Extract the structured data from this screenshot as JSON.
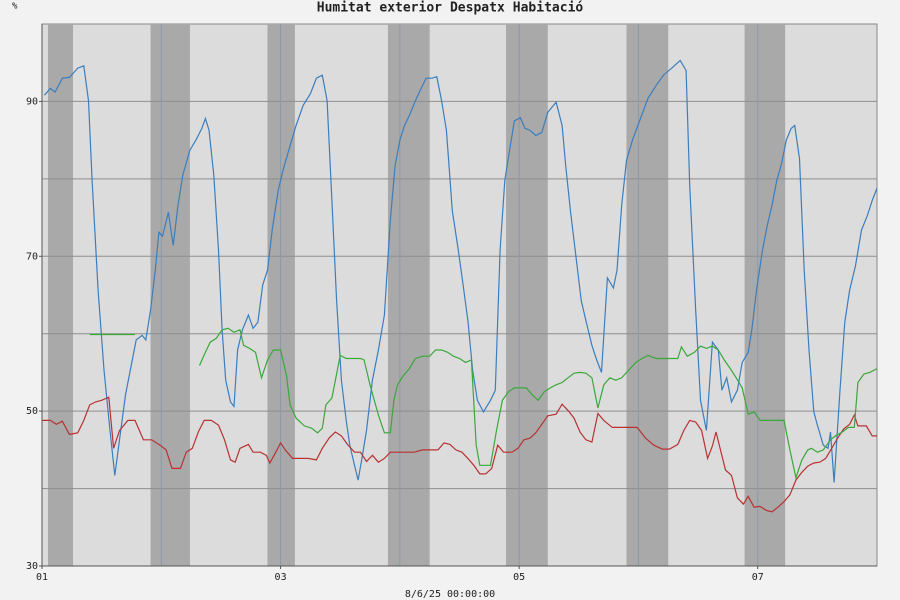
{
  "chart_data": {
    "type": "line",
    "unit_label": "%",
    "xlabel": "8/6/25 00:00:00",
    "xlim": [
      1,
      8
    ],
    "xticks": [
      {
        "value": 1,
        "label": "01"
      },
      {
        "value": 3,
        "label": "03"
      },
      {
        "value": 5,
        "label": "05"
      },
      {
        "value": 7,
        "label": "07"
      }
    ],
    "xgrid": [
      2,
      3,
      4,
      5,
      6,
      7
    ],
    "ylim": [
      30,
      100
    ],
    "yticks": [
      30,
      50,
      70,
      90
    ],
    "ygrid": [
      40,
      50,
      60,
      70,
      80,
      90
    ],
    "bands": [
      [
        1.05,
        1.26
      ],
      [
        1.91,
        2.24
      ],
      [
        2.89,
        3.12
      ],
      [
        3.9,
        4.25
      ],
      [
        4.89,
        5.24
      ],
      [
        5.9,
        6.25
      ],
      [
        6.89,
        7.23
      ]
    ],
    "legend": "top",
    "series": [
      {
        "name": "Humitat exterior",
        "color": "#3a7ebf",
        "x": [
          1.02,
          1.07,
          1.11,
          1.17,
          1.23,
          1.3,
          1.35,
          1.39,
          1.42,
          1.47,
          1.52,
          1.57,
          1.61,
          1.65,
          1.7,
          1.74,
          1.79,
          1.84,
          1.87,
          1.91,
          1.95,
          1.98,
          2.01,
          2.06,
          2.1,
          2.14,
          2.18,
          2.24,
          2.29,
          2.34,
          2.37,
          2.4,
          2.44,
          2.48,
          2.51,
          2.54,
          2.58,
          2.61,
          2.64,
          2.68,
          2.73,
          2.77,
          2.81,
          2.85,
          2.89,
          2.93,
          2.98,
          3.02,
          3.08,
          3.13,
          3.19,
          3.25,
          3.3,
          3.35,
          3.39,
          3.43,
          3.47,
          3.51,
          3.55,
          3.58,
          3.62,
          3.65,
          3.68,
          3.72,
          3.77,
          3.82,
          3.87,
          3.92,
          3.96,
          4.0,
          4.04,
          4.08,
          4.13,
          4.17,
          4.22,
          4.27,
          4.31,
          4.35,
          4.39,
          4.44,
          4.49,
          4.53,
          4.57,
          4.61,
          4.65,
          4.7,
          4.76,
          4.8,
          4.84,
          4.88,
          4.92,
          4.96,
          5.01,
          5.05,
          5.09,
          5.14,
          5.19,
          5.24,
          5.31,
          5.36,
          5.39,
          5.43,
          5.48,
          5.52,
          5.56,
          5.61,
          5.65,
          5.69,
          5.74,
          5.79,
          5.82,
          5.86,
          5.9,
          5.95,
          6.01,
          6.08,
          6.15,
          6.21,
          6.28,
          6.35,
          6.4,
          6.43,
          6.48,
          6.52,
          6.57,
          6.62,
          6.67,
          6.7,
          6.74,
          6.78,
          6.83,
          6.87,
          6.92,
          6.95,
          6.99,
          7.04,
          7.08,
          7.12,
          7.16,
          7.2,
          7.24,
          7.28,
          7.31,
          7.35,
          7.39,
          7.43,
          7.47,
          7.5,
          7.55,
          7.59,
          7.61,
          7.64,
          7.69,
          7.73,
          7.77,
          7.82,
          7.87,
          7.92,
          7.96,
          8.0
        ],
        "values": [
          90.8,
          91.7,
          91.2,
          93.0,
          93.1,
          94.3,
          94.6,
          90.1,
          79.8,
          65.6,
          55.3,
          47.5,
          41.7,
          46.3,
          52.1,
          55.3,
          59.2,
          59.8,
          59.2,
          63.0,
          68.2,
          73.1,
          72.6,
          75.7,
          71.4,
          76.6,
          80.5,
          83.7,
          85.0,
          86.5,
          87.8,
          86.3,
          80.5,
          70.8,
          60.5,
          54.0,
          51.2,
          50.6,
          57.9,
          60.5,
          62.4,
          60.7,
          61.5,
          66.3,
          68.2,
          73.4,
          78.5,
          81.1,
          84.3,
          86.9,
          89.5,
          91.0,
          93.0,
          93.4,
          90.1,
          77.2,
          64.3,
          54.0,
          48.8,
          45.6,
          43.0,
          41.1,
          43.7,
          47.5,
          54.0,
          57.9,
          62.4,
          74.6,
          81.7,
          85.0,
          86.9,
          88.2,
          90.1,
          91.4,
          93.0,
          93.0,
          93.2,
          90.1,
          86.3,
          75.9,
          70.8,
          66.3,
          61.7,
          55.3,
          51.4,
          49.9,
          51.4,
          52.7,
          70.8,
          79.8,
          83.7,
          87.5,
          87.9,
          86.5,
          86.3,
          85.6,
          86.0,
          88.6,
          89.9,
          86.9,
          81.7,
          75.9,
          69.5,
          64.3,
          61.7,
          58.5,
          56.6,
          55.0,
          67.2,
          65.9,
          68.2,
          76.6,
          82.4,
          85.0,
          87.5,
          90.4,
          92.1,
          93.4,
          94.3,
          95.3,
          94.0,
          79.2,
          63.0,
          51.4,
          47.5,
          58.9,
          57.9,
          52.7,
          54.3,
          51.2,
          52.7,
          56.3,
          57.6,
          60.5,
          65.6,
          70.8,
          74.0,
          76.6,
          79.8,
          82.0,
          85.0,
          86.5,
          86.9,
          82.6,
          68.2,
          57.9,
          49.9,
          48.2,
          45.6,
          45.2,
          47.3,
          40.8,
          52.7,
          61.5,
          65.6,
          68.8,
          73.4,
          75.3,
          77.2,
          78.8
        ]
      },
      {
        "name": "Despatx",
        "color": "#b83232",
        "x": [
          1.0,
          1.07,
          1.12,
          1.17,
          1.23,
          1.3,
          1.35,
          1.4,
          1.45,
          1.5,
          1.56,
          1.6,
          1.65,
          1.72,
          1.78,
          1.85,
          1.92,
          1.99,
          2.04,
          2.09,
          2.16,
          2.21,
          2.26,
          2.31,
          2.36,
          2.42,
          2.48,
          2.53,
          2.58,
          2.62,
          2.66,
          2.73,
          2.77,
          2.83,
          2.88,
          2.91,
          2.96,
          3.0,
          3.04,
          3.1,
          3.16,
          3.23,
          3.3,
          3.35,
          3.41,
          3.46,
          3.51,
          3.56,
          3.62,
          3.67,
          3.72,
          3.77,
          3.82,
          3.87,
          3.92,
          3.98,
          4.05,
          4.12,
          4.19,
          4.25,
          4.32,
          4.37,
          4.42,
          4.47,
          4.52,
          4.57,
          4.62,
          4.67,
          4.72,
          4.77,
          4.82,
          4.87,
          4.94,
          4.99,
          5.04,
          5.09,
          5.14,
          5.19,
          5.24,
          5.31,
          5.36,
          5.41,
          5.46,
          5.51,
          5.56,
          5.61,
          5.66,
          5.71,
          5.78,
          5.84,
          5.93,
          5.99,
          6.06,
          6.13,
          6.2,
          6.26,
          6.33,
          6.38,
          6.43,
          6.48,
          6.53,
          6.58,
          6.62,
          6.65,
          6.68,
          6.73,
          6.78,
          6.83,
          6.88,
          6.92,
          6.97,
          7.02,
          7.07,
          7.12,
          7.17,
          7.22,
          7.27,
          7.32,
          7.37,
          7.42,
          7.47,
          7.52,
          7.57,
          7.62,
          7.67,
          7.72,
          7.77,
          7.81,
          7.84,
          7.91,
          7.96,
          8.0
        ],
        "values": [
          48.8,
          48.8,
          48.3,
          48.7,
          47.0,
          47.2,
          48.8,
          50.8,
          51.2,
          51.4,
          51.8,
          45.2,
          47.5,
          48.8,
          48.8,
          46.3,
          46.3,
          45.6,
          45.0,
          42.6,
          42.6,
          44.7,
          45.2,
          47.3,
          48.8,
          48.8,
          48.2,
          46.3,
          43.7,
          43.4,
          45.2,
          45.7,
          44.7,
          44.7,
          44.3,
          43.3,
          44.7,
          45.9,
          45.0,
          43.9,
          43.9,
          43.9,
          43.7,
          45.2,
          46.6,
          47.3,
          46.8,
          45.7,
          44.7,
          44.7,
          43.5,
          44.3,
          43.4,
          43.9,
          44.7,
          44.7,
          44.7,
          44.7,
          45.0,
          45.0,
          45.0,
          45.9,
          45.7,
          45.0,
          44.7,
          43.9,
          43.0,
          41.9,
          41.9,
          42.6,
          45.6,
          44.7,
          44.7,
          45.2,
          46.3,
          46.5,
          47.2,
          48.3,
          49.4,
          49.6,
          50.9,
          50.1,
          49.1,
          47.3,
          46.3,
          46.0,
          49.7,
          48.8,
          47.9,
          47.9,
          47.9,
          47.9,
          46.5,
          45.6,
          45.1,
          45.1,
          45.7,
          47.5,
          48.8,
          48.6,
          47.5,
          43.9,
          45.5,
          47.3,
          45.5,
          42.4,
          41.7,
          38.8,
          38.0,
          39.0,
          37.6,
          37.7,
          37.2,
          37.0,
          37.6,
          38.3,
          39.2,
          41.1,
          42.1,
          42.9,
          43.3,
          43.4,
          43.9,
          45.2,
          46.5,
          47.7,
          48.3,
          49.5,
          48.1,
          48.1,
          46.8,
          46.8
        ]
      },
      {
        "name": "Habitació",
        "color": "#3aa83a",
        "x": [
          1.4,
          1.78,
          null,
          2.32,
          2.37,
          2.41,
          2.46,
          2.51,
          2.56,
          2.61,
          2.66,
          2.69,
          2.74,
          2.79,
          2.84,
          2.89,
          2.94,
          3.0,
          3.05,
          3.08,
          3.13,
          3.2,
          3.26,
          3.31,
          3.35,
          3.38,
          3.43,
          3.46,
          3.5,
          3.55,
          3.6,
          3.67,
          3.7,
          3.75,
          3.82,
          3.87,
          3.92,
          3.95,
          3.98,
          4.03,
          4.08,
          4.13,
          4.19,
          4.25,
          4.3,
          4.35,
          4.4,
          4.45,
          4.5,
          4.55,
          4.6,
          4.64,
          4.67,
          4.72,
          4.76,
          4.81,
          4.86,
          4.91,
          4.96,
          5.01,
          5.06,
          5.11,
          5.16,
          5.21,
          5.26,
          5.31,
          5.36,
          5.41,
          5.46,
          5.51,
          5.56,
          5.61,
          5.66,
          5.71,
          5.76,
          5.81,
          5.86,
          5.93,
          5.98,
          6.03,
          6.08,
          6.15,
          6.21,
          6.28,
          6.33,
          6.36,
          6.41,
          6.47,
          6.52,
          6.57,
          6.62,
          6.67,
          6.72,
          6.77,
          6.82,
          6.87,
          6.92,
          6.97,
          7.02,
          7.07,
          7.12,
          7.17,
          7.22,
          7.27,
          7.32,
          7.37,
          7.42,
          7.45,
          7.5,
          7.55,
          7.61,
          7.66,
          7.71,
          7.76,
          7.81,
          7.84,
          7.89,
          7.94,
          8.0
        ],
        "values": [
          59.9,
          59.9,
          null,
          55.9,
          57.6,
          58.9,
          59.4,
          60.5,
          60.7,
          60.2,
          60.5,
          58.5,
          58.1,
          57.6,
          54.3,
          56.6,
          57.9,
          57.9,
          54.6,
          50.8,
          49.1,
          48.1,
          47.8,
          47.2,
          47.8,
          50.8,
          51.7,
          54.0,
          57.2,
          56.8,
          56.8,
          56.8,
          56.6,
          53.4,
          49.5,
          47.2,
          47.2,
          51.4,
          53.4,
          54.6,
          55.5,
          56.8,
          57.1,
          57.1,
          57.9,
          57.9,
          57.6,
          57.1,
          56.8,
          56.3,
          56.6,
          45.6,
          43.0,
          43.0,
          43.0,
          47.5,
          51.4,
          52.5,
          53.0,
          53.0,
          53.0,
          52.1,
          51.4,
          52.5,
          53.0,
          53.4,
          53.7,
          54.3,
          54.9,
          55.0,
          54.9,
          54.3,
          50.4,
          53.4,
          54.3,
          54.0,
          54.3,
          55.5,
          56.3,
          56.8,
          57.2,
          56.8,
          56.8,
          56.8,
          56.8,
          58.3,
          57.1,
          57.6,
          58.4,
          58.1,
          58.4,
          57.9,
          56.6,
          55.5,
          54.3,
          53.0,
          49.6,
          49.9,
          48.8,
          48.8,
          48.8,
          48.8,
          48.8,
          45.0,
          41.4,
          43.7,
          45.0,
          45.2,
          44.7,
          45.0,
          46.3,
          46.9,
          47.3,
          47.9,
          47.9,
          53.7,
          54.8,
          55.0,
          55.5
        ]
      }
    ]
  }
}
